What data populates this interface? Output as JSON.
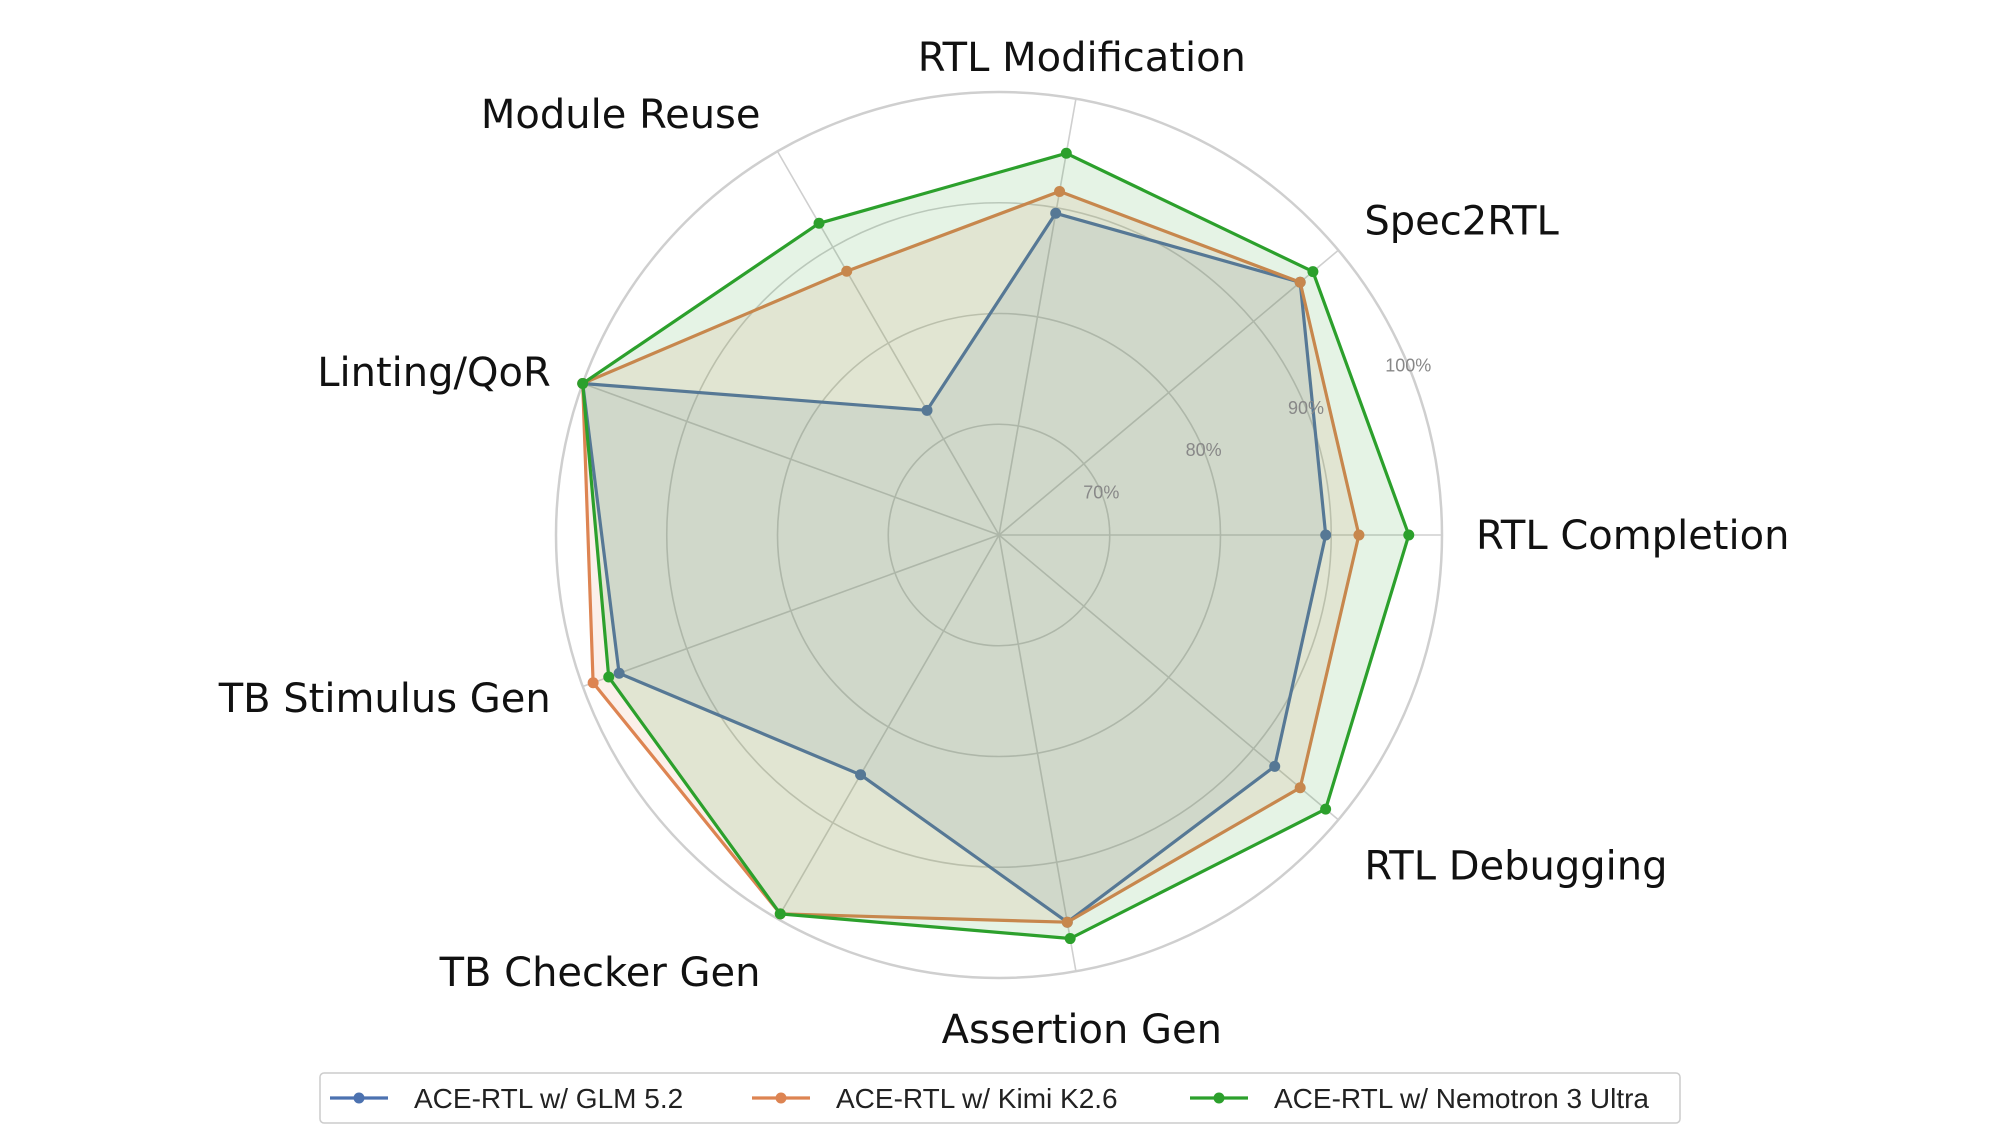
{
  "chart_data": {
    "type": "radar",
    "categories": [
      "RTL Completion",
      "Spec2RTL",
      "RTL Modification",
      "Module Reuse",
      "Linting/QoR",
      "TB Stimulus Gen",
      "TB Checker Gen",
      "Assertion Gen",
      "RTL Debugging"
    ],
    "r_ticks": [
      70,
      80,
      90,
      100
    ],
    "r_tick_labels": [
      "70%",
      "80%",
      "90%",
      "100%"
    ],
    "r_range": [
      60,
      100
    ],
    "grid": true,
    "legend_position": "bottom",
    "series": [
      {
        "name": "ACE-RTL w/ GLM 5.2",
        "color": "#4c72b0",
        "values": [
          89.5,
          95.5,
          89.5,
          73.0,
          100.0,
          96.5,
          85.0,
          95.5,
          92.5
        ]
      },
      {
        "name": "ACE-RTL w/ Kimi K2.6",
        "color": "#dd8452",
        "values": [
          92.5,
          95.5,
          91.5,
          87.5,
          100.0,
          99.0,
          99.5,
          95.5,
          95.5
        ]
      },
      {
        "name": "ACE-RTL w/ Nemotron 3 Ultra",
        "color": "#2ca02c",
        "values": [
          97.0,
          97.0,
          95.0,
          92.5,
          100.0,
          97.5,
          99.5,
          97.0,
          98.5
        ]
      }
    ]
  }
}
